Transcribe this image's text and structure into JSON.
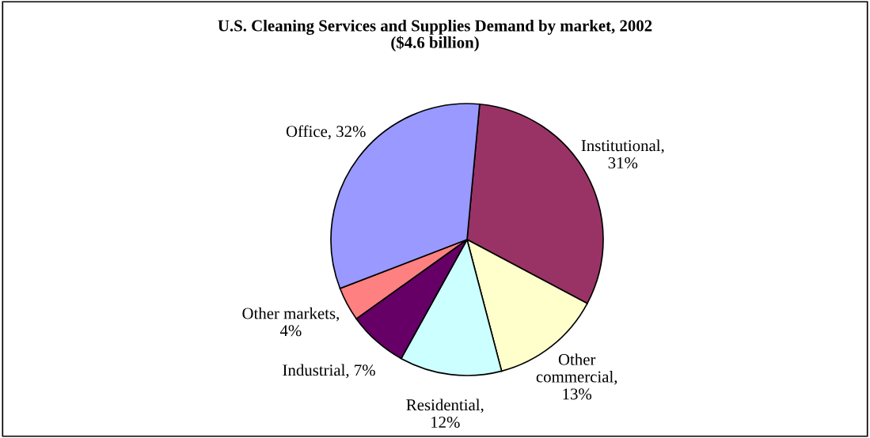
{
  "chart_data": {
    "type": "pie",
    "title": "U.S. Cleaning Services and Supplies Demand by market, 2002\n($4.6 billion)",
    "categories": [
      "Institutional",
      "Other commercial",
      "Residential",
      "Industrial",
      "Other markets",
      "Office"
    ],
    "values": [
      31,
      13,
      12,
      7,
      4,
      32
    ],
    "colors": [
      "#993366",
      "#ffffcc",
      "#ccffff",
      "#660066",
      "#ff8080",
      "#9999ff"
    ],
    "value_labels": [
      ", 31%",
      ", 13%",
      ", 12%",
      ", 7%",
      ", 4%",
      ", 32%"
    ],
    "legend": false
  }
}
